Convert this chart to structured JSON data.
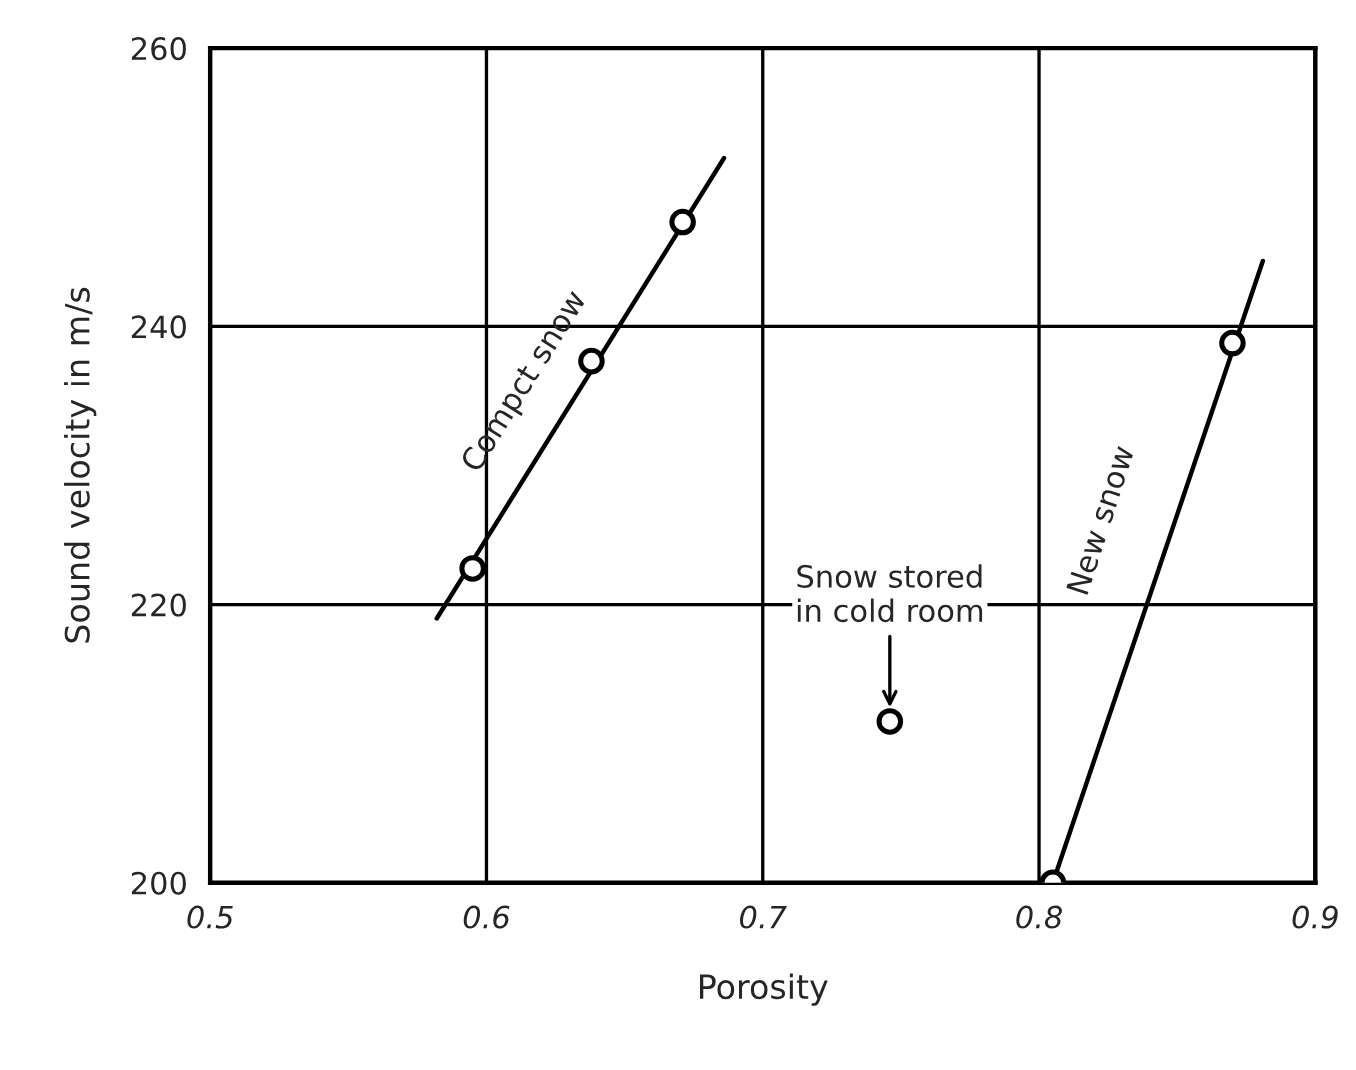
{
  "chart_data": {
    "type": "scatter",
    "xlabel": "Porosity",
    "ylabel": "Sound velocity in m/s",
    "xlim": [
      0.5,
      0.9
    ],
    "ylim": [
      200,
      260
    ],
    "xticks": [
      0.5,
      0.6,
      0.7,
      0.8,
      0.9
    ],
    "yticks": [
      200,
      220,
      240,
      260
    ],
    "grid": true,
    "series": [
      {
        "type": "line",
        "color": "#000000",
        "marker": "none",
        "line_style": "solid",
        "x": [
          0.582,
          0.686
        ],
        "values": [
          219.0,
          252.1
        ]
      },
      {
        "color": "#000000",
        "marker": "circle",
        "x": [
          0.595,
          0.638,
          0.671
        ],
        "values": [
          222.6,
          237.5,
          247.5
        ]
      },
      {
        "type": "line",
        "color": "#000000",
        "marker": "none",
        "line_style": "solid",
        "x": [
          0.805,
          0.881
        ],
        "values": [
          200,
          244.7
        ]
      },
      {
        "color": "#000000",
        "marker": "circle",
        "x": [
          0.805,
          0.87
        ],
        "values": [
          200,
          238.8
        ]
      },
      {
        "color": "#000000",
        "marker": "circle",
        "x": [
          0.746
        ],
        "values": [
          211.6
        ]
      }
    ],
    "annotations": [
      "Compct snow",
      {
        "text": "Snow stored\nin cold room",
        "x": 0.746,
        "y": 211.6
      },
      "New snow"
    ]
  }
}
